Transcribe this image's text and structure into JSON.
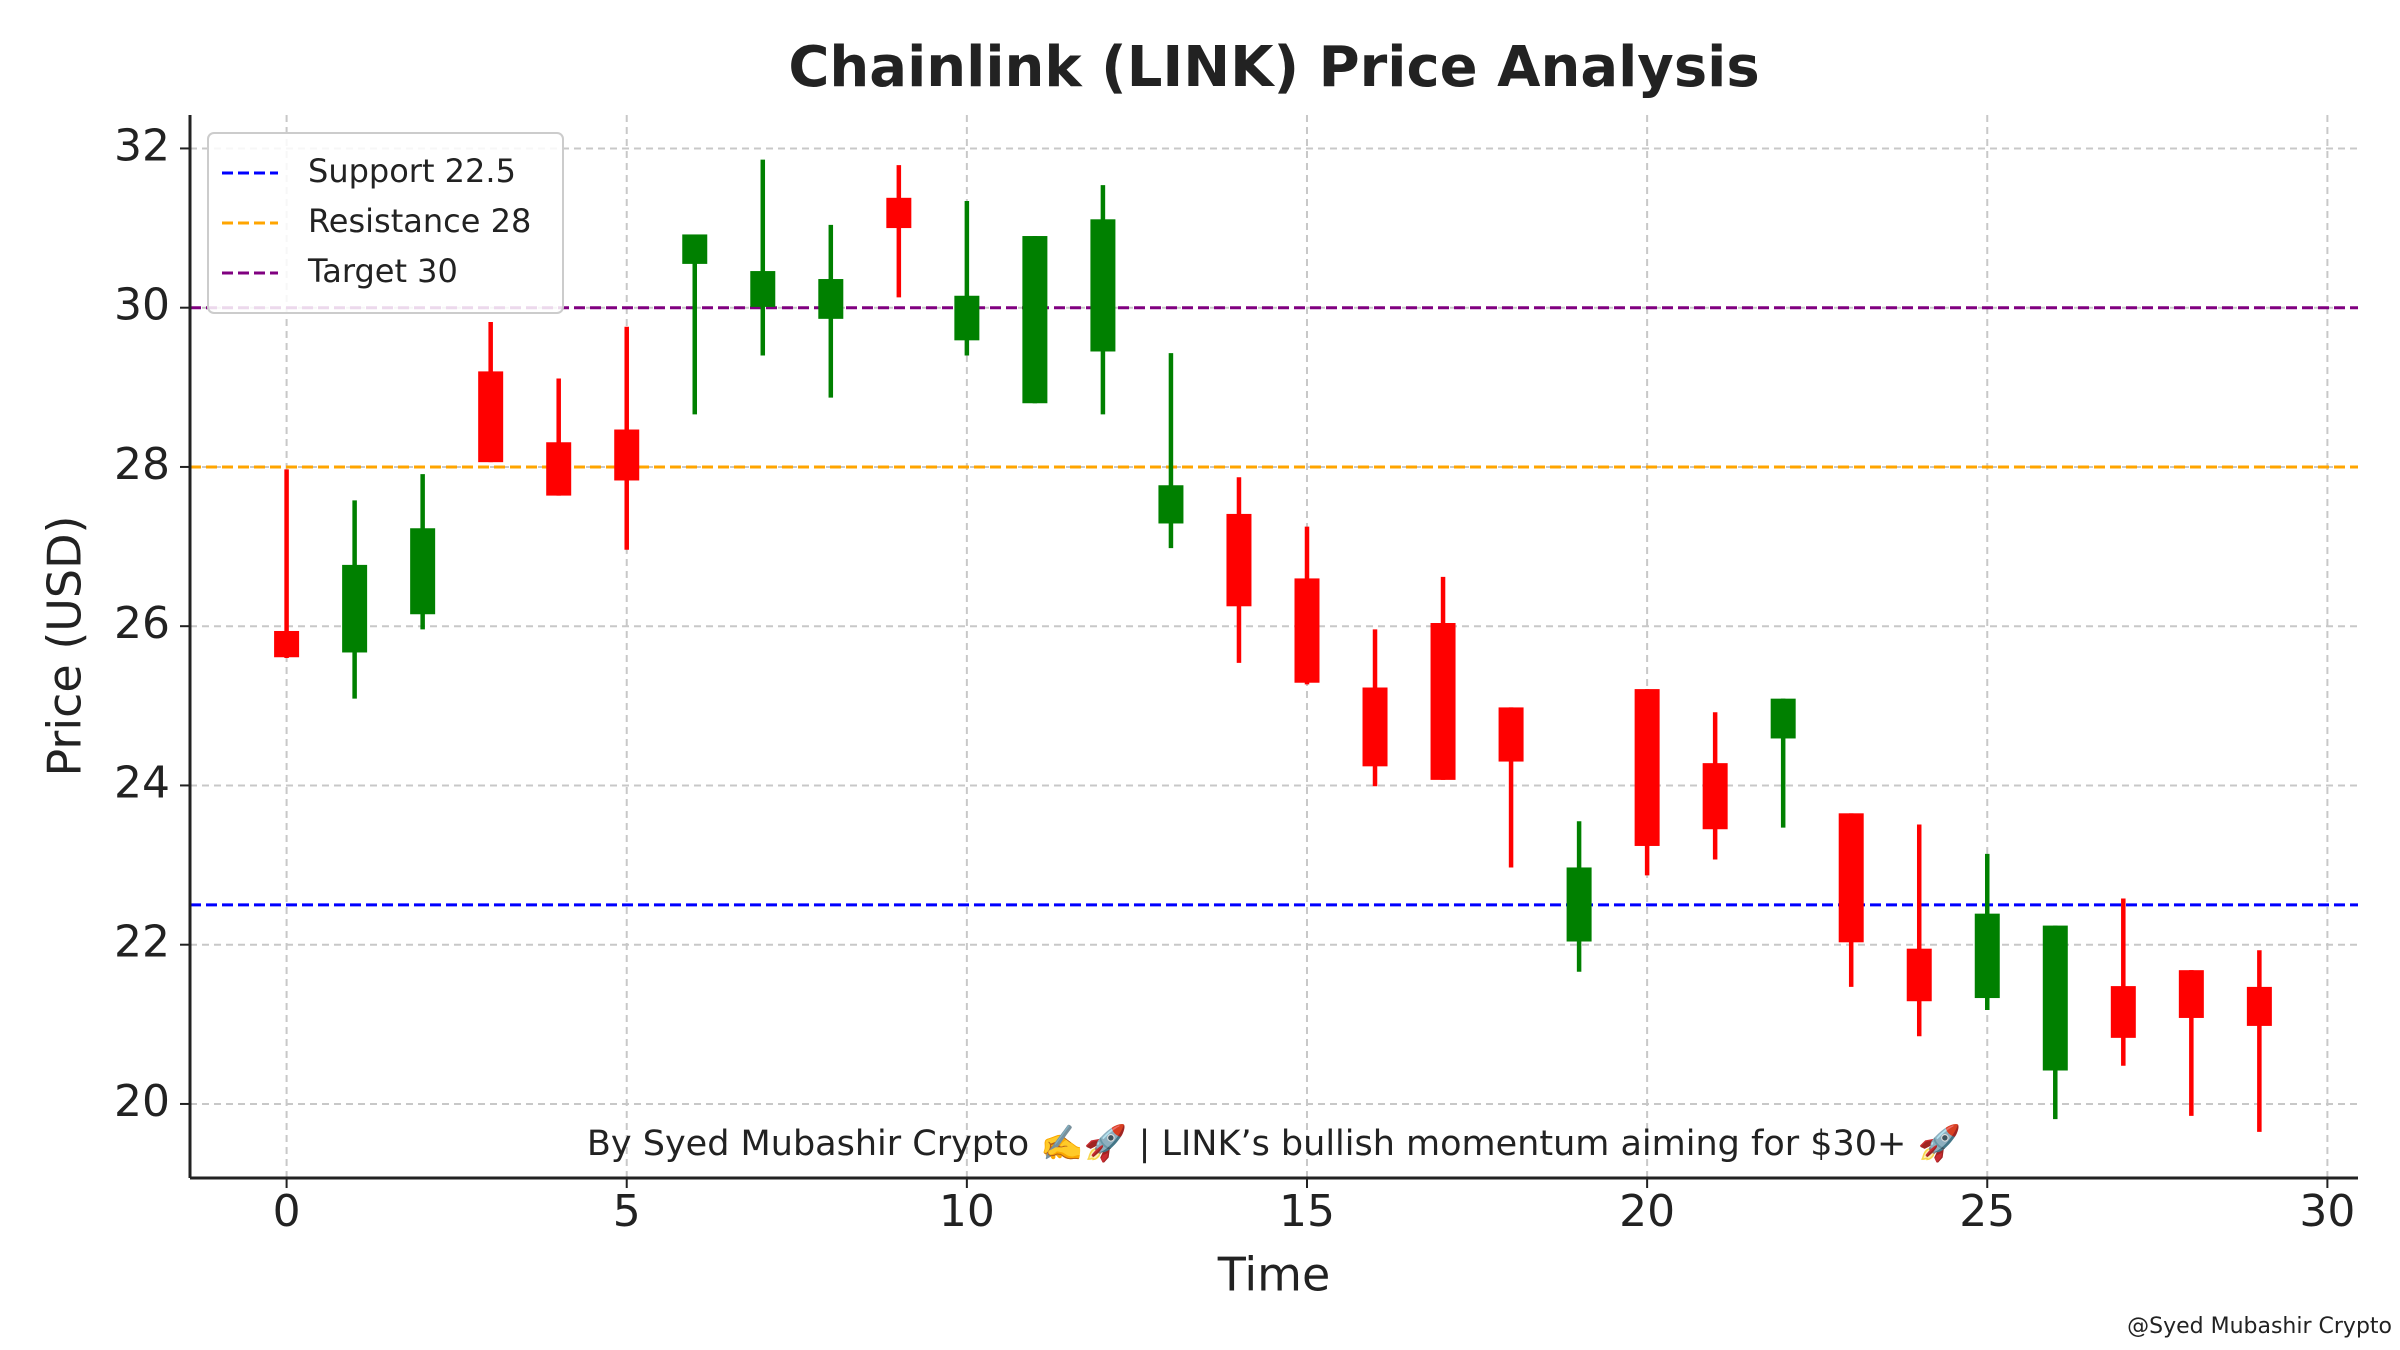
{
  "chart_data": {
    "type": "candlestick",
    "title": "Chainlink (LINK) Price Analysis",
    "xlabel": "Time",
    "ylabel": "Price (USD)",
    "annotation": "By Syed Mubashir Crypto ✍️🚀 | LINK’s bullish momentum aiming for $30+ 🚀",
    "watermark": "@Syed Mubashir Crypto",
    "x": [
      0,
      1,
      2,
      3,
      4,
      5,
      6,
      7,
      8,
      9,
      10,
      11,
      12,
      13,
      14,
      15,
      16,
      17,
      18,
      19,
      20,
      21,
      22,
      23,
      24,
      25,
      26,
      27,
      28,
      29
    ],
    "open": [
      25.94,
      25.67,
      26.15,
      29.2,
      28.31,
      28.47,
      30.55,
      30.01,
      29.86,
      31.38,
      29.59,
      28.8,
      29.45,
      27.29,
      27.41,
      26.6,
      25.23,
      26.04,
      24.98,
      22.04,
      25.21,
      24.28,
      24.59,
      23.65,
      21.95,
      21.33,
      20.42,
      21.48,
      21.68,
      21.47
    ],
    "high": [
      27.97,
      27.58,
      27.91,
      29.82,
      29.11,
      29.76,
      30.92,
      31.86,
      31.04,
      31.79,
      31.34,
      30.9,
      31.54,
      29.43,
      27.87,
      27.25,
      25.96,
      26.62,
      24.98,
      23.55,
      25.21,
      24.92,
      25.09,
      23.65,
      23.51,
      23.14,
      22.24,
      22.58,
      21.68,
      21.93
    ],
    "low": [
      25.6,
      25.09,
      25.96,
      28.06,
      27.64,
      26.96,
      28.66,
      29.4,
      28.87,
      30.13,
      29.4,
      28.8,
      28.66,
      26.98,
      25.54,
      25.27,
      23.99,
      24.07,
      22.97,
      21.66,
      22.87,
      23.07,
      23.47,
      21.47,
      20.85,
      21.18,
      19.81,
      20.48,
      19.85,
      19.65
    ],
    "close": [
      25.61,
      26.77,
      27.23,
      28.06,
      27.64,
      27.83,
      30.92,
      30.46,
      30.36,
      31.0,
      30.15,
      30.9,
      31.11,
      27.77,
      26.25,
      25.29,
      24.24,
      24.07,
      24.3,
      22.97,
      23.24,
      23.45,
      25.09,
      22.03,
      21.29,
      22.39,
      22.24,
      20.83,
      21.08,
      20.98
    ],
    "up_color": "#008000",
    "down_color": "#ff0000",
    "hlines": [
      {
        "name": "Support 22.5",
        "value": 22.5,
        "color": "#0000ff"
      },
      {
        "name": "Resistance 28",
        "value": 28,
        "color": "#ffa500"
      },
      {
        "name": "Target 30",
        "value": 30,
        "color": "#800080"
      }
    ],
    "xlim": [
      -1.42,
      30.45
    ],
    "ylim": [
      19.07,
      32.42
    ],
    "xticks": [
      0,
      5,
      10,
      15,
      20,
      25,
      30
    ],
    "yticks": [
      20,
      22,
      24,
      26,
      28,
      30,
      32
    ],
    "grid": true,
    "legend": "upper left"
  }
}
